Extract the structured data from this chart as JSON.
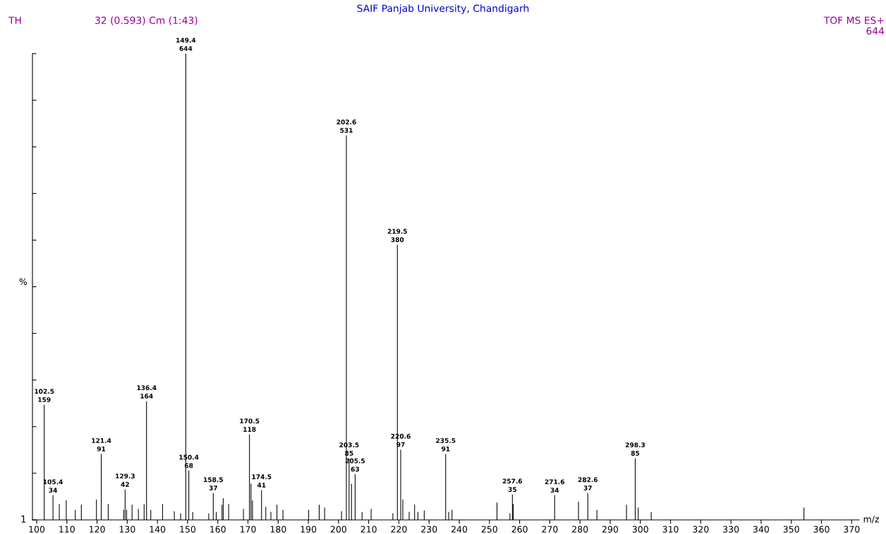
{
  "chart_data": {
    "type": "bar",
    "title": "SAIF Panjab University, Chandigarh",
    "annotations": [
      "TH",
      "32 (0.593) Cm (1:43)",
      "TOF MS ES+",
      "644",
      "1",
      {
        "text": "102.5",
        "x": 102.5,
        "y": 159
      },
      {
        "text": "105.4",
        "x": 105.4,
        "y": 34
      },
      {
        "text": "121.4",
        "x": 121.4,
        "y": 91
      },
      {
        "text": "129.3",
        "x": 129.3,
        "y": 42
      },
      {
        "text": "136.4",
        "x": 136.4,
        "y": 164
      },
      {
        "text": "149.4",
        "x": 149.4,
        "y": 644
      },
      {
        "text": "150.4",
        "x": 150.4,
        "y": 68
      },
      {
        "text": "158.5",
        "x": 158.5,
        "y": 37
      },
      {
        "text": "170.5",
        "x": 170.5,
        "y": 118
      },
      {
        "text": "174.5",
        "x": 174.5,
        "y": 41
      },
      {
        "text": "202.6",
        "x": 202.6,
        "y": 531
      },
      {
        "text": "203.5",
        "x": 203.5,
        "y": 85
      },
      {
        "text": "205.5",
        "x": 205.5,
        "y": 63
      },
      {
        "text": "219.5",
        "x": 219.5,
        "y": 380
      },
      {
        "text": "220.6",
        "x": 220.6,
        "y": 97
      },
      {
        "text": "235.5",
        "x": 235.5,
        "y": 91
      },
      {
        "text": "257.6",
        "x": 257.6,
        "y": 35
      },
      {
        "text": "271.6",
        "x": 271.6,
        "y": 34
      },
      {
        "text": "282.6",
        "x": 282.6,
        "y": 37
      },
      {
        "text": "298.3",
        "x": 298.3,
        "y": 85
      }
    ],
    "xlabel": "m/z",
    "ylabel": "%",
    "color": "#000000",
    "x": [
      102.5,
      105.4,
      107.5,
      109.8,
      112.8,
      114.8,
      119.8,
      121.4,
      123.7,
      128.8,
      129.3,
      129.8,
      131.6,
      133.7,
      135.6,
      136.4,
      137.8,
      141.7,
      145.6,
      147.7,
      149.4,
      150.4,
      151.7,
      157.0,
      158.5,
      159.5,
      161.4,
      161.8,
      163.6,
      168.5,
      170.5,
      171.0,
      171.5,
      174.5,
      175.9,
      177.6,
      179.6,
      181.6,
      190.1,
      193.6,
      195.4,
      201.0,
      202.6,
      203.5,
      204.3,
      205.5,
      207.8,
      210.8,
      218.0,
      219.5,
      220.6,
      221.3,
      223.4,
      225.2,
      226.3,
      228.4,
      235.5,
      236.5,
      237.6,
      252.5,
      256.8,
      257.6,
      257.9,
      271.6,
      279.5,
      282.6,
      285.6,
      295.4,
      298.3,
      299.3,
      303.6,
      354.2
    ],
    "values": [
      159,
      34,
      22,
      27,
      14,
      21,
      28,
      91,
      22,
      14,
      42,
      14,
      21,
      15,
      22,
      164,
      14,
      22,
      12,
      9,
      644,
      68,
      11,
      9,
      37,
      11,
      21,
      30,
      22,
      15,
      118,
      50,
      27,
      41,
      18,
      11,
      21,
      14,
      14,
      21,
      17,
      12,
      531,
      85,
      50,
      63,
      11,
      15,
      9,
      380,
      97,
      28,
      11,
      21,
      11,
      13,
      91,
      11,
      14,
      24,
      9,
      35,
      22,
      34,
      25,
      37,
      14,
      21,
      85,
      17,
      11,
      17
    ],
    "value_labels": [
      "159",
      "34",
      null,
      null,
      null,
      null,
      null,
      "91",
      null,
      null,
      "42",
      null,
      null,
      null,
      null,
      "164",
      null,
      null,
      null,
      null,
      "644",
      "68",
      null,
      null,
      "37",
      null,
      null,
      null,
      null,
      null,
      "118",
      null,
      null,
      "41",
      null,
      null,
      null,
      null,
      null,
      null,
      null,
      null,
      "531",
      "85",
      null,
      "63",
      null,
      null,
      null,
      "380",
      "97",
      null,
      null,
      null,
      null,
      null,
      "91",
      null,
      null,
      null,
      null,
      "35",
      null,
      "34",
      null,
      "37",
      null,
      null,
      "85",
      null,
      null,
      null
    ],
    "xlim": [
      98.6,
      372.5
    ],
    "xticks": [
      100,
      110,
      120,
      130,
      140,
      150,
      160,
      170,
      180,
      190,
      200,
      210,
      220,
      230,
      240,
      250,
      260,
      270,
      280,
      290,
      300,
      310,
      320,
      330,
      340,
      350,
      360,
      370
    ],
    "ylim": [
      0,
      644
    ],
    "yticks": [
      {
        "value": 0,
        "label": null
      },
      {
        "value": 64.4,
        "label": null
      },
      {
        "value": 128.8,
        "label": null
      },
      {
        "value": 193.2,
        "label": null
      },
      {
        "value": 257.6,
        "label": null
      },
      {
        "value": 322,
        "label": null
      },
      {
        "value": 386.4,
        "label": null
      },
      {
        "value": 450.8,
        "label": null
      },
      {
        "value": 515.2,
        "label": null
      },
      {
        "value": 579.6,
        "label": null
      },
      {
        "value": 644,
        "label": null
      }
    ],
    "grid": false
  }
}
